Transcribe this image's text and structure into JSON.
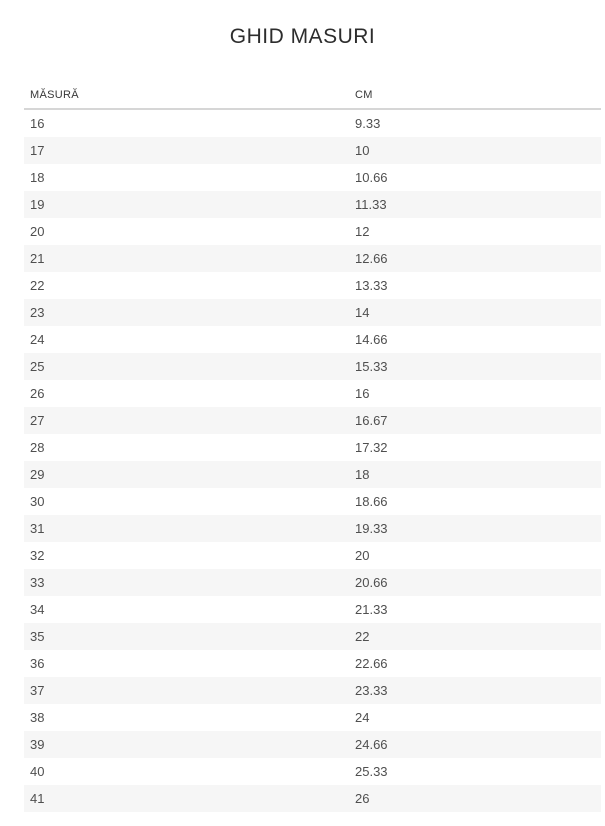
{
  "page": {
    "title": "GHID MASURI"
  },
  "table": {
    "columns": [
      {
        "label": "MĂSURĂ"
      },
      {
        "label": "CM"
      }
    ],
    "rows": [
      {
        "size": "16",
        "cm": "9.33"
      },
      {
        "size": "17",
        "cm": "10"
      },
      {
        "size": "18",
        "cm": "10.66"
      },
      {
        "size": "19",
        "cm": "11.33"
      },
      {
        "size": "20",
        "cm": "12"
      },
      {
        "size": "21",
        "cm": "12.66"
      },
      {
        "size": "22",
        "cm": "13.33"
      },
      {
        "size": "23",
        "cm": "14"
      },
      {
        "size": "24",
        "cm": "14.66"
      },
      {
        "size": "25",
        "cm": "15.33"
      },
      {
        "size": "26",
        "cm": "16"
      },
      {
        "size": "27",
        "cm": "16.67"
      },
      {
        "size": "28",
        "cm": "17.32"
      },
      {
        "size": "29",
        "cm": "18"
      },
      {
        "size": "30",
        "cm": "18.66"
      },
      {
        "size": "31",
        "cm": "19.33"
      },
      {
        "size": "32",
        "cm": "20"
      },
      {
        "size": "33",
        "cm": "20.66"
      },
      {
        "size": "34",
        "cm": "21.33"
      },
      {
        "size": "35",
        "cm": "22"
      },
      {
        "size": "36",
        "cm": "22.66"
      },
      {
        "size": "37",
        "cm": "23.33"
      },
      {
        "size": "38",
        "cm": "24"
      },
      {
        "size": "39",
        "cm": "24.66"
      },
      {
        "size": "40",
        "cm": "25.33"
      },
      {
        "size": "41",
        "cm": "26"
      }
    ]
  },
  "colors": {
    "title_text": "#2d2d2d",
    "header_text": "#383838",
    "row_text": "#4f4f4f",
    "alt_row_bg": "#f6f6f6",
    "header_border": "#d6d6d6"
  }
}
